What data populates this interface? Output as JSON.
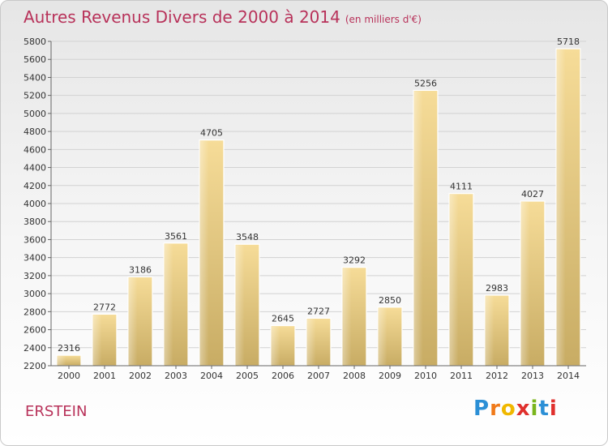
{
  "header": {
    "title": "Autres Revenus Divers de 2000 à 2014",
    "unit": "(en milliers d'€)"
  },
  "footer": {
    "place": "ERSTEIN",
    "logo_letters": [
      "P",
      "r",
      "o",
      "x",
      "i",
      "t",
      "i"
    ],
    "logo_colors": [
      "#2b8fd6",
      "#f07a1a",
      "#f0b800",
      "#e0302d",
      "#7ab51d",
      "#2b8fd6",
      "#e0302d"
    ]
  },
  "chart_data": {
    "type": "bar",
    "title": "Autres Revenus Divers de 2000 à 2014",
    "subtitle": "(en milliers d'€)",
    "categories": [
      "2000",
      "2001",
      "2002",
      "2003",
      "2004",
      "2005",
      "2006",
      "2007",
      "2008",
      "2009",
      "2010",
      "2011",
      "2012",
      "2013",
      "2014"
    ],
    "values": [
      2316,
      2772,
      3186,
      3561,
      4705,
      3548,
      2645,
      2727,
      3292,
      2850,
      5256,
      4111,
      2983,
      4027,
      5718
    ],
    "ylim": [
      2200,
      5800
    ],
    "yticks": [
      2200,
      2400,
      2600,
      2800,
      3000,
      3200,
      3400,
      3600,
      3800,
      4000,
      4200,
      4400,
      4600,
      4800,
      5000,
      5200,
      5400,
      5600,
      5800
    ],
    "grid": true,
    "bar_color": "#e6c97e"
  }
}
